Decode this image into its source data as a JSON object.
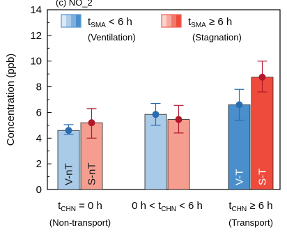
{
  "chart_data": {
    "type": "bar",
    "title_fragment": "(c) NO_2",
    "ylabel": "Concentration (ppb)",
    "ylim": [
      0,
      14
    ],
    "yticks": [
      0,
      2,
      4,
      6,
      8,
      10,
      12,
      14
    ],
    "legend": [
      {
        "symbol": "t",
        "sub": "SMA",
        "cond": " < 6 h",
        "desc": "(Ventilation)",
        "color": "#5b9bd5"
      },
      {
        "symbol": "t",
        "sub": "SMA",
        "cond": " ≥ 6 h",
        "desc": "(Stagnation)",
        "color": "#f0675a"
      }
    ],
    "groups": [
      {
        "pre": "",
        "sym": "t",
        "sub": "CHN",
        "post": " = 0 h",
        "desc": "(Non-transport)"
      },
      {
        "pre": "0 h < ",
        "sym": "t",
        "sub": "CHN",
        "post": " < 6 h",
        "desc": ""
      },
      {
        "pre": "",
        "sym": "t",
        "sub": "CHN",
        "post": " ≥ 6 h",
        "desc": "(Transport)"
      }
    ],
    "series": [
      {
        "name": "Ventilation",
        "values": [
          4.6,
          5.85,
          6.6
        ],
        "err_low": [
          4.3,
          5.0,
          5.4
        ],
        "err_high": [
          5.05,
          6.7,
          7.8
        ],
        "labels": [
          "V-nT",
          "",
          "V-T"
        ],
        "fill": [
          "#aacbe8",
          "#a9cbe8",
          "#4a8fcc"
        ],
        "marker": "#2b6cb0"
      },
      {
        "name": "Stagnation",
        "values": [
          5.2,
          5.45,
          8.75
        ],
        "err_low": [
          4.0,
          4.4,
          7.6
        ],
        "err_high": [
          6.3,
          6.55,
          10.0
        ],
        "labels": [
          "S-nT",
          "",
          "S-T"
        ],
        "fill": [
          "#f59e90",
          "#f59e90",
          "#ef4b3c"
        ],
        "marker": "#b2182b"
      }
    ]
  }
}
